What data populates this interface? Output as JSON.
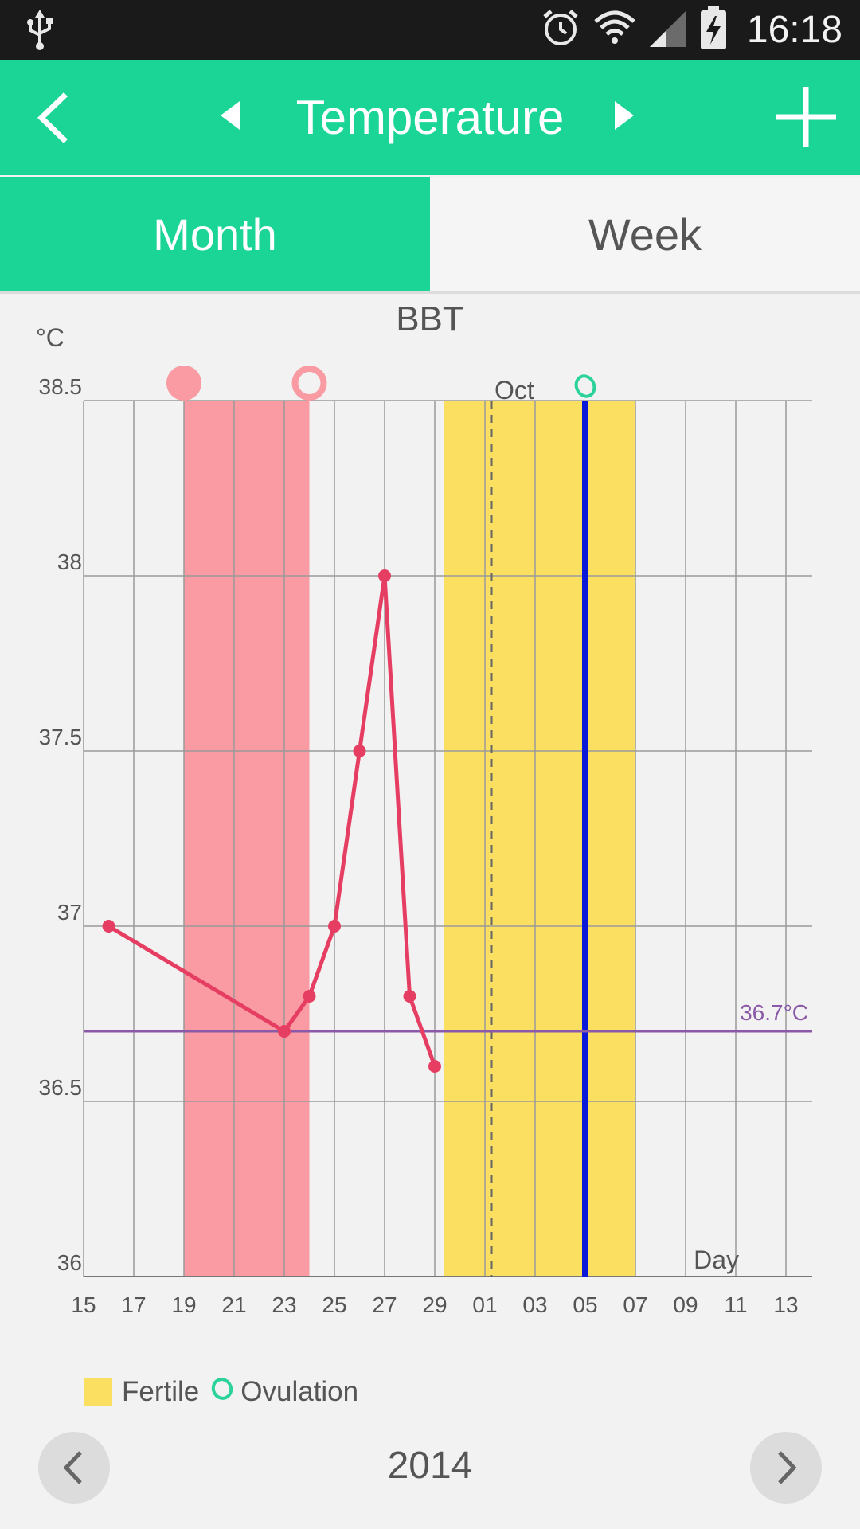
{
  "status_bar": {
    "time": "16:18",
    "icons": [
      "usb-icon",
      "alarm-icon",
      "wifi-icon",
      "signal-icon",
      "battery-charging-icon"
    ]
  },
  "app_bar": {
    "title": "Temperature",
    "icons": [
      "back-icon",
      "prev-triangle-icon",
      "next-triangle-icon",
      "add-icon"
    ]
  },
  "tabs": [
    {
      "label": "Month",
      "active": true
    },
    {
      "label": "Week",
      "active": false
    }
  ],
  "colors": {
    "accent": "#1ad596",
    "period": "#fa9aa2",
    "fertile": "#fadf60",
    "line": "#e63e63",
    "ovulation": "#2bd39a",
    "coverline": "#8a5aa8",
    "ovulation_line": "#0a18d8"
  },
  "chart_data": {
    "type": "line",
    "title": "BBT",
    "y_unit_label": "°C",
    "xlabel": "Day",
    "ylim": [
      36,
      38.5
    ],
    "y_ticks": [
      "38.5",
      "38",
      "37.5",
      "37",
      "36.5",
      "36"
    ],
    "x_tick_labels": [
      "15",
      "17",
      "19",
      "21",
      "23",
      "25",
      "27",
      "29",
      "01",
      "03",
      "05",
      "07",
      "09",
      "11",
      "13"
    ],
    "month_marker": "Oct",
    "cover_line": {
      "value": 36.7,
      "label": "36.7°C"
    },
    "period_range": {
      "start": "19",
      "end": "24"
    },
    "fertile_range": {
      "start": "30",
      "end": "07"
    },
    "ovulation_day": "05",
    "series": [
      {
        "days": [
          "16",
          "23",
          "24",
          "25",
          "26",
          "27",
          "28",
          "29"
        ],
        "values": [
          37.0,
          36.7,
          36.8,
          37.0,
          37.5,
          38.0,
          36.8,
          36.6
        ]
      }
    ]
  },
  "legend": {
    "fertile_label": "Fertile",
    "ovulation_label": "Ovulation"
  },
  "year_nav": {
    "year": "2014"
  }
}
